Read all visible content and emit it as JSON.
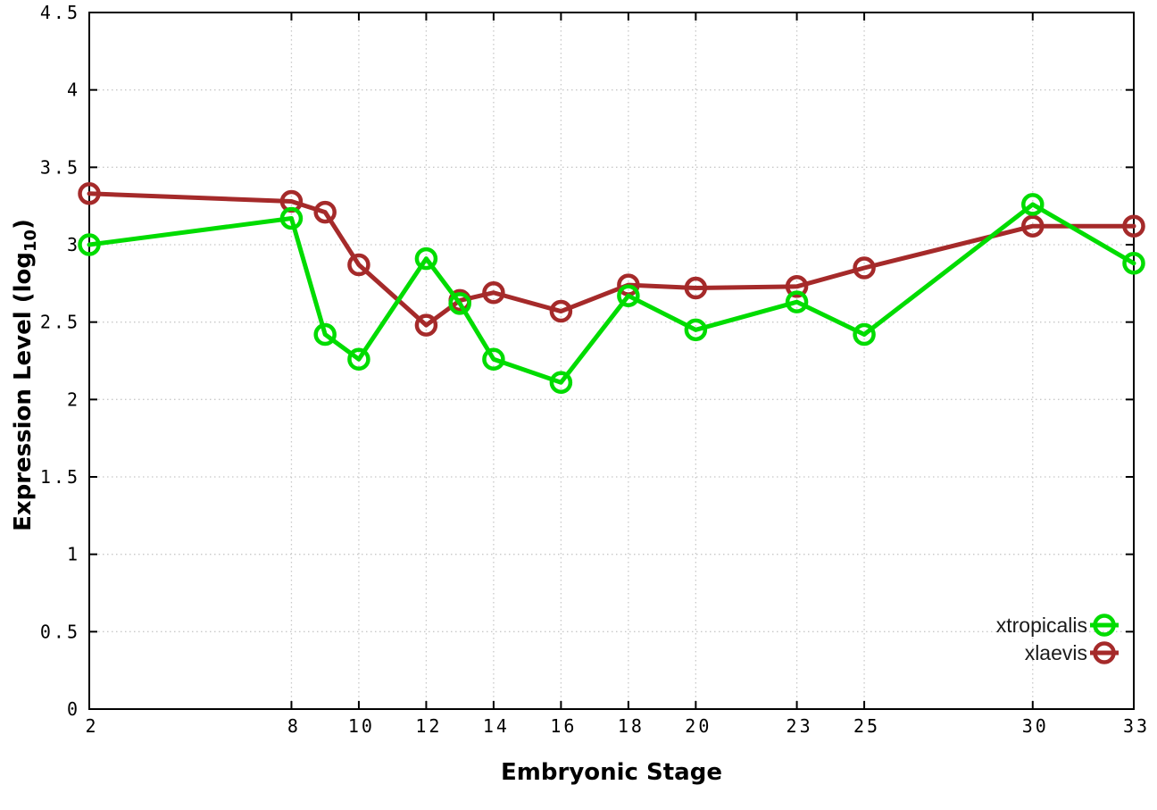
{
  "figure": {
    "background": "#ffffff",
    "axis_color": "#000000",
    "grid_color": "#c8c8c8",
    "text_color": "#000000"
  },
  "chart_data": {
    "type": "line",
    "title": "",
    "xlabel": "Embryonic Stage",
    "ylabel": "Expression Level (log10)",
    "ylabel_parts": {
      "prefix": "Expression Level (log",
      "sub": "10",
      "suffix": ")"
    },
    "xlim": [
      2,
      33
    ],
    "ylim": [
      0,
      4.5
    ],
    "grid": true,
    "legend_position": "bottom-right",
    "x": [
      2,
      8,
      9,
      10,
      12,
      13,
      14,
      16,
      18,
      20,
      23,
      25,
      30,
      33
    ],
    "x_tick_values": [
      2,
      8,
      10,
      12,
      14,
      16,
      18,
      20,
      23,
      25,
      30,
      33
    ],
    "x_tick_labels": [
      "2",
      "8",
      "10",
      "12",
      "14",
      "16",
      "18",
      "20",
      "23",
      "25",
      "30",
      "33"
    ],
    "y_tick_values": [
      0,
      0.5,
      1,
      1.5,
      2,
      2.5,
      3,
      3.5,
      4,
      4.5
    ],
    "y_tick_labels": [
      "0",
      "0.5",
      "1",
      "1.5",
      "2",
      "2.5",
      "3",
      "3.5",
      "4",
      "4.5"
    ],
    "series": [
      {
        "name": "xtropicalis",
        "color": "#00dc00",
        "values": [
          3.0,
          3.17,
          2.42,
          2.26,
          2.91,
          2.62,
          2.26,
          2.11,
          2.67,
          2.45,
          2.63,
          2.42,
          3.26,
          2.88
        ]
      },
      {
        "name": "xlaevis",
        "color": "#a52a2a",
        "values": [
          3.33,
          3.28,
          3.21,
          2.87,
          2.48,
          2.64,
          2.69,
          2.57,
          2.74,
          2.72,
          2.73,
          2.85,
          3.12,
          3.12
        ]
      }
    ]
  }
}
